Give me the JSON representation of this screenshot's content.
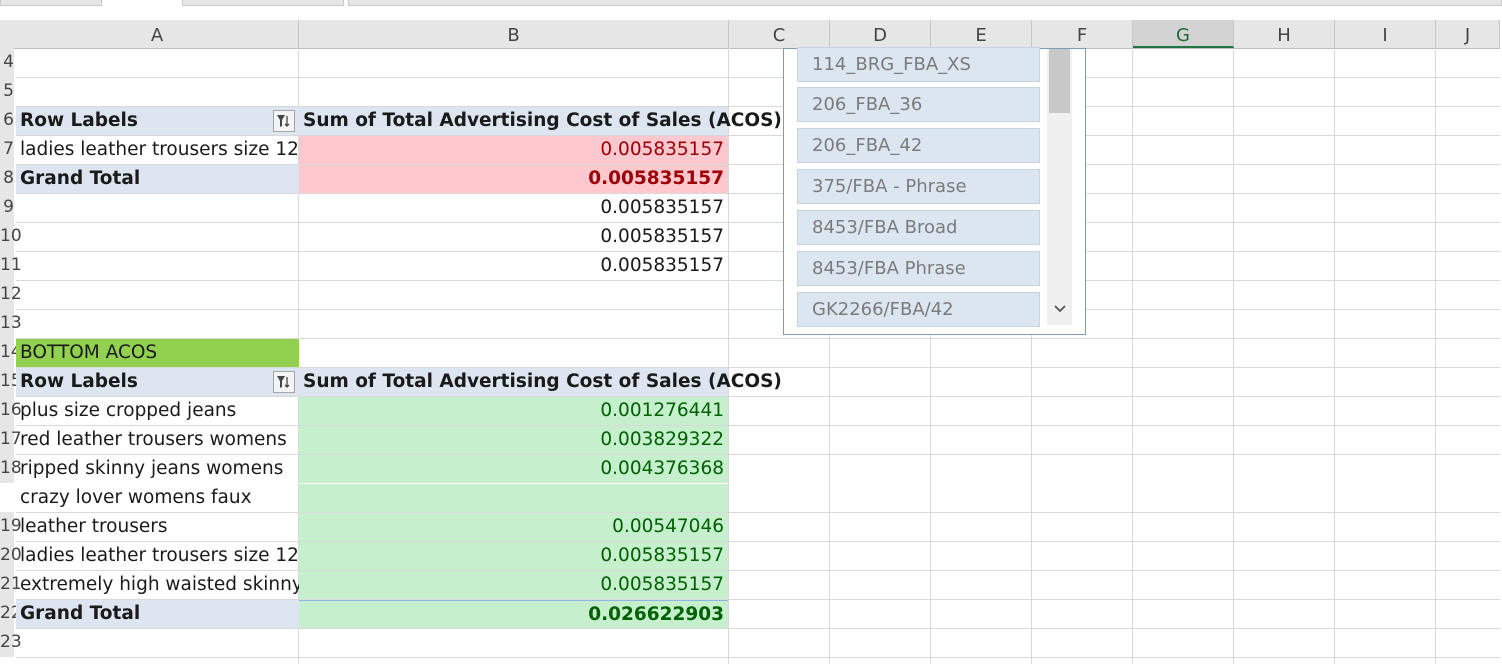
{
  "columns": [
    "A",
    "B",
    "C",
    "D",
    "E",
    "F",
    "G",
    "H",
    "I",
    "J"
  ],
  "selected_column": "G",
  "row_numbers": [
    "4",
    "5",
    "6",
    "7",
    "8",
    "9",
    "10",
    "11",
    "12",
    "13",
    "14",
    "15",
    "16",
    "17",
    "18",
    "",
    "19",
    "20",
    "21",
    "22",
    "23"
  ],
  "top_pivot": {
    "row_labels_header": "Row Labels",
    "value_header": "Sum of Total Advertising Cost of Sales (ACOS)",
    "rows": [
      {
        "label": "ladies leather trousers size 12",
        "value": "0.005835157"
      }
    ],
    "grand_total_label": "Grand Total",
    "grand_total_value": "0.005835157",
    "extra_values": [
      "0.005835157",
      "0.005835157",
      "0.005835157"
    ]
  },
  "bottom_section_title": "BOTTOM ACOS",
  "bottom_pivot": {
    "row_labels_header": "Row Labels",
    "value_header": "Sum of Total Advertising Cost of Sales (ACOS)",
    "rows": [
      {
        "label": "plus size cropped jeans",
        "value": "0.001276441"
      },
      {
        "label": "red leather trousers womens",
        "value": "0.003829322"
      },
      {
        "label": "ripped skinny jeans womens",
        "value": "0.004376368"
      },
      {
        "label_line1": "crazy lover womens faux",
        "label_line2": "leather trousers",
        "value": "0.00547046"
      },
      {
        "label": "ladies leather trousers size 12",
        "value": "0.005835157"
      },
      {
        "label": "extremely high waisted skinny",
        "value": "0.005835157"
      }
    ],
    "grand_total_label": "Grand Total",
    "grand_total_value": "0.026622903"
  },
  "slicer": {
    "items": [
      "114_BRG_FBA_XS",
      "206_FBA_36",
      "206_FBA_42",
      "375/FBA - Phrase",
      "8453/FBA Broad",
      "8453/FBA Phrase",
      "GK2266/FBA/42"
    ]
  },
  "colors": {
    "header_band": "#dde6f0",
    "pink_fill": "#ffc7ce",
    "pink_text": "#9c0006",
    "green_fill": "#c6efce",
    "green_text": "#006100",
    "section_green": "#92d050",
    "slicer_item": "#dce6f1"
  }
}
